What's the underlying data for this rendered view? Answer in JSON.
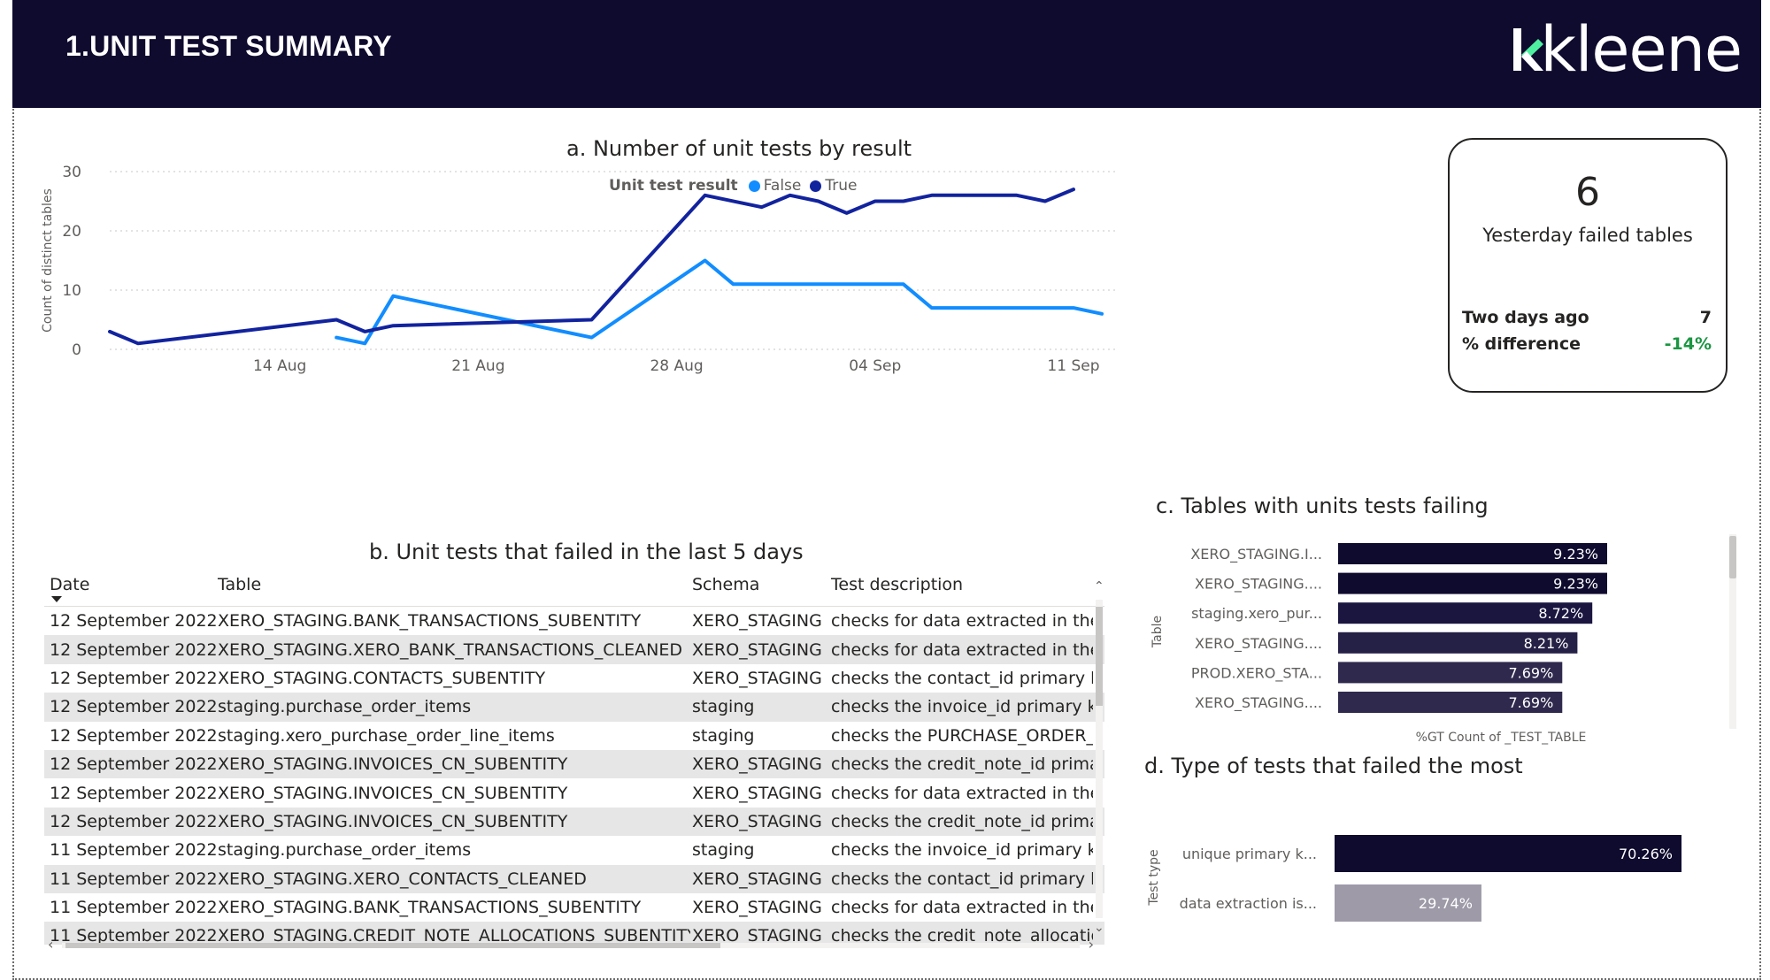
{
  "header": {
    "title": "1.UNIT TEST SUMMARY",
    "logo_text": "kleene"
  },
  "line_chart_visual": {
    "title": "a. Number of unit tests by result",
    "legend_title": "Unit test result",
    "ylabel": "Count of distinct tables"
  },
  "kpi": {
    "value": "6",
    "label": "Yesterday failed tables",
    "row1_label": "Two days ago",
    "row1_value": "7",
    "row2_label": "% difference",
    "row2_value": "-14%"
  },
  "table": {
    "title": "b. Unit tests that failed in the last 5 days",
    "columns": [
      "Date",
      "Table",
      "Schema",
      "Test description"
    ],
    "rows": [
      [
        "12 September 2022",
        "XERO_STAGING.BANK_TRANSACTIONS_SUBENTITY",
        "XERO_STAGING",
        "checks for data extracted in the p"
      ],
      [
        "12 September 2022",
        "XERO_STAGING.XERO_BANK_TRANSACTIONS_CLEANED",
        "XERO_STAGING",
        "checks for data extracted in the p"
      ],
      [
        "12 September 2022",
        "XERO_STAGING.CONTACTS_SUBENTITY",
        "XERO_STAGING",
        "checks the contact_id primary ke"
      ],
      [
        "12 September 2022",
        "staging.purchase_order_items",
        "staging",
        "checks the invoice_id primary ke"
      ],
      [
        "12 September 2022",
        "staging.xero_purchase_order_line_items",
        "staging",
        "checks the PURCHASE_ORDER_li"
      ],
      [
        "12 September 2022",
        "XERO_STAGING.INVOICES_CN_SUBENTITY",
        "XERO_STAGING",
        "checks the credit_note_id primar"
      ],
      [
        "12 September 2022",
        "XERO_STAGING.INVOICES_CN_SUBENTITY",
        "XERO_STAGING",
        "checks for data extracted in the p"
      ],
      [
        "12 September 2022",
        "XERO_STAGING.INVOICES_CN_SUBENTITY",
        "XERO_STAGING",
        "checks the credit_note_id primar"
      ],
      [
        "11 September 2022",
        "staging.purchase_order_items",
        "staging",
        "checks the invoice_id primary ke"
      ],
      [
        "11 September 2022",
        "XERO_STAGING.XERO_CONTACTS_CLEANED",
        "XERO_STAGING",
        "checks the contact_id primary ke"
      ],
      [
        "11 September 2022",
        "XERO_STAGING.BANK_TRANSACTIONS_SUBENTITY",
        "XERO_STAGING",
        "checks for data extracted in the p"
      ],
      [
        "11 September 2022",
        "XERO_STAGING.CREDIT_NOTE_ALLOCATIONS_SUBENTITY",
        "XERO_STAGING",
        "checks the credit_note_allocation"
      ]
    ]
  },
  "chart_data": [
    {
      "type": "line",
      "title": "a. Number of unit tests by result",
      "ylabel": "Count of distinct tables",
      "xlabel": "",
      "x_tick_labels": [
        "14 Aug",
        "21 Aug",
        "28 Aug",
        "04 Sep",
        "11 Sep"
      ],
      "x_tick_positions": [
        6,
        13,
        20,
        27,
        34
      ],
      "ylim": [
        0,
        30
      ],
      "y_ticks": [
        0,
        10,
        20,
        30
      ],
      "grid": true,
      "legend": "top",
      "series": [
        {
          "name": "False",
          "color": "#118dff",
          "points": [
            [
              8,
              2
            ],
            [
              9,
              1
            ],
            [
              10,
              9
            ],
            [
              17,
              2
            ],
            [
              21,
              15
            ],
            [
              22,
              11
            ],
            [
              28,
              11
            ],
            [
              29,
              7
            ],
            [
              34,
              7
            ],
            [
              35,
              6
            ]
          ]
        },
        {
          "name": "True",
          "color": "#12239e",
          "points": [
            [
              0,
              3
            ],
            [
              1,
              1
            ],
            [
              8,
              5
            ],
            [
              9,
              3
            ],
            [
              10,
              4
            ],
            [
              17,
              5
            ],
            [
              21,
              26
            ],
            [
              23,
              24
            ],
            [
              24,
              26
            ],
            [
              25,
              25
            ],
            [
              26,
              23
            ],
            [
              27,
              25
            ],
            [
              28,
              25
            ],
            [
              29,
              26
            ],
            [
              32,
              26
            ],
            [
              33,
              25
            ],
            [
              34,
              27
            ]
          ]
        }
      ]
    },
    {
      "type": "bar",
      "orientation": "horizontal",
      "title": "c. Tables with units tests failing",
      "ylabel": "Table",
      "xlabel": "%GT Count of _TEST_TABLE",
      "categories": [
        "XERO_STAGING.I...",
        "XERO_STAGING....",
        "staging.xero_pur...",
        "XERO_STAGING....",
        "PROD.XERO_STA...",
        "XERO_STAGING...."
      ],
      "values": [
        9.23,
        9.23,
        8.72,
        8.21,
        7.69,
        7.69
      ],
      "labels": [
        "9.23%",
        "9.23%",
        "8.72%",
        "8.21%",
        "7.69%",
        "7.69%"
      ],
      "colors": [
        "#0f0b2e",
        "#0f0b2e",
        "#1a1640",
        "#252045",
        "#2f2a4d",
        "#2f2a4d"
      ],
      "xlim": [
        0,
        11
      ]
    },
    {
      "type": "bar",
      "orientation": "horizontal",
      "title": "d. Type of tests that failed the most",
      "ylabel": "Test type",
      "xlabel": "",
      "categories": [
        "unique primary k...",
        "data extraction is..."
      ],
      "values": [
        70.26,
        29.74
      ],
      "labels": [
        "70.26%",
        "29.74%"
      ],
      "colors": [
        "#0f0b2e",
        "#9e9aa8"
      ],
      "xlim": [
        0,
        80
      ]
    }
  ]
}
